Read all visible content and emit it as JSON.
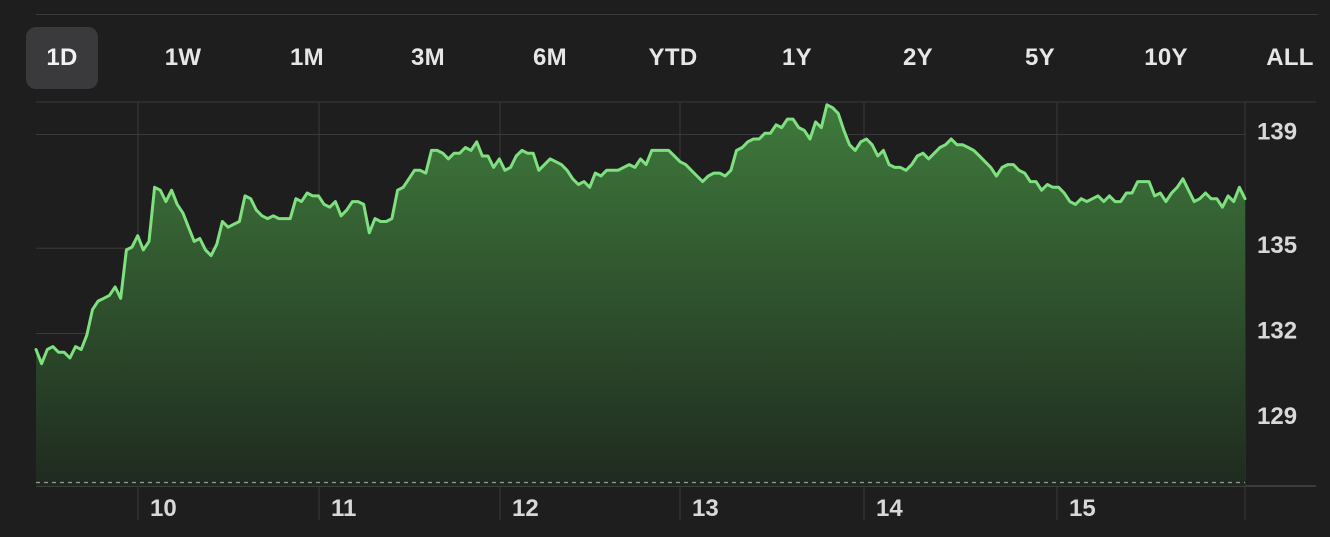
{
  "range_tabs": {
    "selected": "1D",
    "items": [
      {
        "id": "1d",
        "label": "1D"
      },
      {
        "id": "1w",
        "label": "1W"
      },
      {
        "id": "1m",
        "label": "1M"
      },
      {
        "id": "3m",
        "label": "3M"
      },
      {
        "id": "6m",
        "label": "6M"
      },
      {
        "id": "ytd",
        "label": "YTD"
      },
      {
        "id": "1y",
        "label": "1Y"
      },
      {
        "id": "2y",
        "label": "2Y"
      },
      {
        "id": "5y",
        "label": "5Y"
      },
      {
        "id": "10y",
        "label": "10Y"
      },
      {
        "id": "all",
        "label": "ALL"
      }
    ]
  },
  "colors": {
    "line": "#7ee07e",
    "fill_top": "#3f7a3c",
    "fill_bottom": "#1f2a1f",
    "grid": "#3a3a3c",
    "label": "#d8d8d8",
    "background": "#1e1e1e"
  },
  "chart_data": {
    "type": "area",
    "title": "",
    "xlabel": "",
    "ylabel": "",
    "x_ticks": [
      "10",
      "11",
      "12",
      "13",
      "14",
      "15"
    ],
    "y_ticks": [
      139,
      135,
      132,
      129
    ],
    "ylim": [
      126.5,
      140
    ],
    "baseline": 126.8,
    "grid": true,
    "series": [
      {
        "name": "",
        "values": [
          131.3,
          130.8,
          131.3,
          131.4,
          131.2,
          131.2,
          131.0,
          131.4,
          131.3,
          131.8,
          132.7,
          133.0,
          133.1,
          133.2,
          133.5,
          133.1,
          134.8,
          134.9,
          135.3,
          134.8,
          135.1,
          137.0,
          136.9,
          136.5,
          136.9,
          136.4,
          136.1,
          135.6,
          135.1,
          135.2,
          134.8,
          134.6,
          135.0,
          135.8,
          135.6,
          135.7,
          135.8,
          136.7,
          136.6,
          136.2,
          136.0,
          135.9,
          136.0,
          135.9,
          135.9,
          135.9,
          136.6,
          136.5,
          136.8,
          136.7,
          136.7,
          136.4,
          136.3,
          136.5,
          136.0,
          136.2,
          136.5,
          136.5,
          136.4,
          135.4,
          135.9,
          135.8,
          135.8,
          135.9,
          136.9,
          137.0,
          137.3,
          137.6,
          137.6,
          137.5,
          138.3,
          138.3,
          138.2,
          138.0,
          138.2,
          138.2,
          138.4,
          138.3,
          138.6,
          138.1,
          138.1,
          137.7,
          138.0,
          137.6,
          137.7,
          138.1,
          138.3,
          138.2,
          138.2,
          137.6,
          137.8,
          138.0,
          137.9,
          137.8,
          137.6,
          137.3,
          137.1,
          137.2,
          137.0,
          137.5,
          137.4,
          137.6,
          137.6,
          137.6,
          137.7,
          137.8,
          137.7,
          138.0,
          137.8,
          138.3,
          138.3,
          138.3,
          138.3,
          138.1,
          137.9,
          137.8,
          137.6,
          137.4,
          137.2,
          137.4,
          137.5,
          137.5,
          137.4,
          137.6,
          138.3,
          138.4,
          138.6,
          138.7,
          138.7,
          138.9,
          138.9,
          139.2,
          139.1,
          139.4,
          139.4,
          139.1,
          139.0,
          138.7,
          139.3,
          139.1,
          139.9,
          139.8,
          139.6,
          139.0,
          138.5,
          138.3,
          138.6,
          138.7,
          138.5,
          138.1,
          138.3,
          137.8,
          137.7,
          137.7,
          137.6,
          137.8,
          138.1,
          138.2,
          138.0,
          138.2,
          138.4,
          138.5,
          138.7,
          138.5,
          138.5,
          138.4,
          138.3,
          138.1,
          137.9,
          137.7,
          137.4,
          137.7,
          137.8,
          137.8,
          137.6,
          137.5,
          137.2,
          137.2,
          136.9,
          137.1,
          137.0,
          137.0,
          136.8,
          136.5,
          136.4,
          136.6,
          136.5,
          136.6,
          136.7,
          136.5,
          136.7,
          136.5,
          136.5,
          136.8,
          136.8,
          137.2,
          137.2,
          137.2,
          136.7,
          136.8,
          136.5,
          136.8,
          137.0,
          137.3,
          136.9,
          136.5,
          136.6,
          136.8,
          136.6,
          136.6,
          136.3,
          136.7,
          136.5,
          137.0,
          136.6
        ]
      }
    ]
  }
}
